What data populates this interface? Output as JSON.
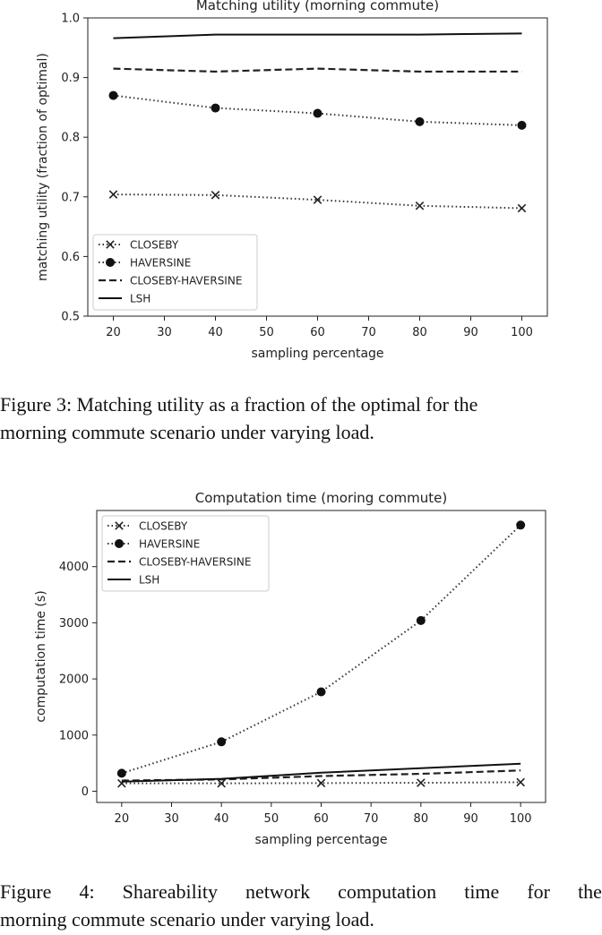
{
  "figures": [
    {
      "caption_lines": [
        "Figure 3: Matching utility as a fraction of the optimal for the",
        "morning commute scenario under varying load."
      ]
    },
    {
      "caption_lines": [
        "Figure 4: Shareability network computation time for the",
        "morning commute scenario under varying load."
      ]
    }
  ],
  "chart_data": [
    {
      "type": "line",
      "title": "Matching utility (morning commute)",
      "xlabel": "sampling percentage",
      "ylabel": "matching utility (fraction of optimal)",
      "xlim": [
        15,
        105
      ],
      "ylim": [
        0.5,
        1.0
      ],
      "xticks": [
        20,
        30,
        40,
        50,
        60,
        70,
        80,
        90,
        100
      ],
      "yticks": [
        0.5,
        0.6,
        0.7,
        0.8,
        0.9,
        1.0
      ],
      "ytick_labels": [
        "0.5",
        "0.6",
        "0.7",
        "0.8",
        "0.9",
        "1.0"
      ],
      "legend_position": "lower-left",
      "grid": false,
      "x": [
        20,
        40,
        60,
        80,
        100
      ],
      "series": [
        {
          "name": "CLOSEBY",
          "style": "dotted",
          "marker": "x",
          "values": [
            0.704,
            0.703,
            0.695,
            0.685,
            0.681
          ]
        },
        {
          "name": "HAVERSINE",
          "style": "dotted",
          "marker": "circle",
          "values": [
            0.87,
            0.849,
            0.84,
            0.826,
            0.82
          ]
        },
        {
          "name": "CLOSEBY-HAVERSINE",
          "style": "dashed",
          "marker": "none",
          "values": [
            0.915,
            0.91,
            0.915,
            0.91,
            0.91
          ]
        },
        {
          "name": "LSH",
          "style": "solid",
          "marker": "none",
          "values": [
            0.966,
            0.972,
            0.972,
            0.972,
            0.974
          ]
        }
      ]
    },
    {
      "type": "line",
      "title": "Computation time (moring commute)",
      "xlabel": "sampling percentage",
      "ylabel": "computation time (s)",
      "xlim": [
        15,
        105
      ],
      "ylim": [
        -200,
        5000
      ],
      "xticks": [
        20,
        30,
        40,
        50,
        60,
        70,
        80,
        90,
        100
      ],
      "yticks": [
        0,
        1000,
        2000,
        3000,
        4000
      ],
      "ytick_labels": [
        "0",
        "1000",
        "2000",
        "3000",
        "4000"
      ],
      "legend_position": "upper-left",
      "grid": false,
      "x": [
        20,
        40,
        60,
        80,
        100
      ],
      "series": [
        {
          "name": "CLOSEBY",
          "style": "dotted",
          "marker": "x",
          "values": [
            140,
            140,
            145,
            150,
            160
          ]
        },
        {
          "name": "HAVERSINE",
          "style": "dotted",
          "marker": "circle",
          "values": [
            320,
            880,
            1770,
            3040,
            4740
          ]
        },
        {
          "name": "CLOSEBY-HAVERSINE",
          "style": "dashed",
          "marker": "none",
          "values": [
            190,
            210,
            270,
            310,
            370
          ]
        },
        {
          "name": "LSH",
          "style": "solid",
          "marker": "none",
          "values": [
            170,
            220,
            330,
            410,
            490
          ]
        }
      ]
    }
  ]
}
